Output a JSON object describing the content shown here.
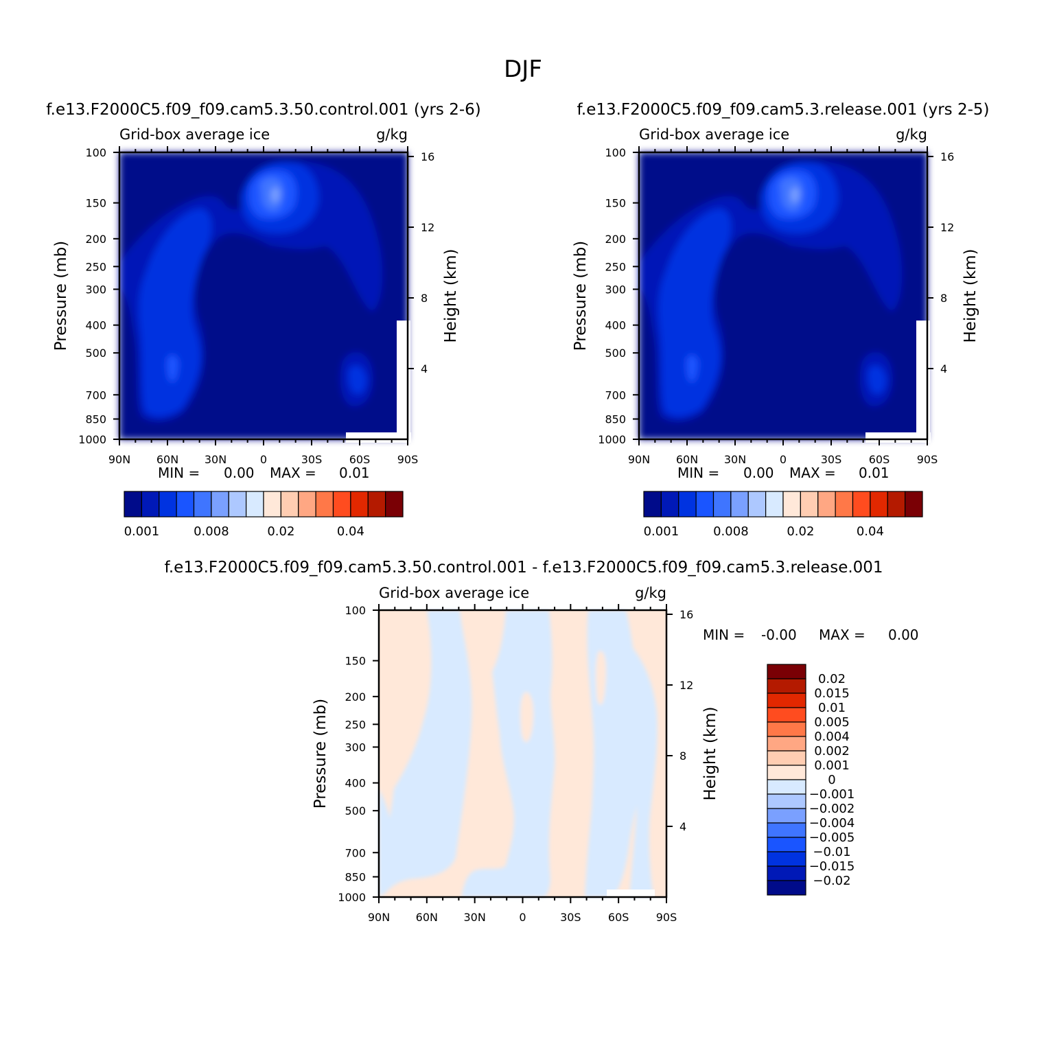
{
  "figure": {
    "title": "DJF"
  },
  "panels": [
    {
      "title": "f.e13.F2000C5.f09_f09.cam5.3.50.control.001 (yrs 2-6)",
      "left_label": "Grid-box average ice",
      "right_label": "g/kg",
      "stats": {
        "min_label": "MIN =",
        "min_value": "0.00",
        "max_label": "MAX =",
        "max_value": "0.01"
      }
    },
    {
      "title": "f.e13.F2000C5.f09_f09.cam5.3.release.001 (yrs 2-5)",
      "left_label": "Grid-box average ice",
      "right_label": "g/kg",
      "stats": {
        "min_label": "MIN =",
        "min_value": "0.00",
        "max_label": "MAX =",
        "max_value": "0.01"
      }
    },
    {
      "title": "f.e13.F2000C5.f09_f09.cam5.3.50.control.001 - f.e13.F2000C5.f09_f09.cam5.3.release.001",
      "left_label": "Grid-box average ice",
      "right_label": "g/kg",
      "stats": {
        "min_label": "MIN =",
        "min_value": "-0.00",
        "max_label": "MAX =",
        "max_value": "0.00"
      }
    }
  ],
  "axes": {
    "x_ticks": [
      "90N",
      "60N",
      "30N",
      "0",
      "30S",
      "60S",
      "90S"
    ],
    "y_label": "Pressure (mb)",
    "y_ticks": [
      100,
      150,
      200,
      250,
      300,
      400,
      500,
      700,
      850,
      1000
    ],
    "y2_label": "Height (km)",
    "y2_ticks": [
      16,
      12,
      8,
      4
    ]
  },
  "colorbar_main": {
    "colors": [
      "#000b8a",
      "#0019b7",
      "#0033e0",
      "#1a55ff",
      "#3f75ff",
      "#7aa0ff",
      "#adc8ff",
      "#d8eaff",
      "#ffe8d9",
      "#ffcdb2",
      "#ffa783",
      "#ff7848",
      "#ff4c1f",
      "#e22800",
      "#b41a00",
      "#7a0005"
    ],
    "labels": [
      "0.001",
      "0.008",
      "0.02",
      "0.04"
    ]
  },
  "colorbar_diff": {
    "colors": [
      "#000b8a",
      "#0019b7",
      "#0033e0",
      "#1a55ff",
      "#3f75ff",
      "#7aa0ff",
      "#adc8ff",
      "#d8eaff",
      "#ffe8d9",
      "#ffcdb2",
      "#ffa783",
      "#ff7848",
      "#ff4c1f",
      "#e22800",
      "#b41a00",
      "#7a0005"
    ],
    "labels": [
      "0.02",
      "0.015",
      "0.01",
      "0.005",
      "0.004",
      "0.002",
      "0.001",
      "0",
      "-0.001",
      "-0.002",
      "-0.004",
      "-0.005",
      "-0.01",
      "-0.015",
      "-0.02"
    ]
  },
  "chart_data": [
    {
      "type": "heatmap",
      "title": "f.e13.F2000C5.f09_f09.cam5.3.50.control.001 (yrs 2-6)",
      "variable": "Grid-box average ice",
      "units": "g/kg",
      "xlabel": "",
      "ylabel": "Pressure (mb)",
      "y2label": "Height (km)",
      "x_ticks": [
        "90N",
        "60N",
        "30N",
        "0",
        "30S",
        "60S",
        "90S"
      ],
      "ylim": [
        1000,
        100
      ],
      "y_scale": "log",
      "min": 0.0,
      "max": 0.01,
      "levels": [
        0.001,
        0.002,
        0.004,
        0.006,
        0.008,
        0.01,
        0.015,
        0.02
      ],
      "features": [
        {
          "region": "tropical upper troposphere",
          "lat": 6,
          "pressure_mb": 240,
          "approx_value": 0.006
        },
        {
          "region": "NH mid-latitude column",
          "lat": 55,
          "pressure_mb": 500,
          "approx_value": 0.002
        },
        {
          "region": "SH high-latitude lower troposphere",
          "lat": -67,
          "pressure_mb": 790,
          "approx_value": 0.003
        }
      ]
    },
    {
      "type": "heatmap",
      "title": "f.e13.F2000C5.f09_f09.cam5.3.release.001 (yrs 2-5)",
      "variable": "Grid-box average ice",
      "units": "g/kg",
      "xlabel": "",
      "ylabel": "Pressure (mb)",
      "y2label": "Height (km)",
      "x_ticks": [
        "90N",
        "60N",
        "30N",
        "0",
        "30S",
        "60S",
        "90S"
      ],
      "ylim": [
        1000,
        100
      ],
      "y_scale": "log",
      "min": 0.0,
      "max": 0.01,
      "levels": [
        0.001,
        0.002,
        0.004,
        0.006,
        0.008,
        0.01,
        0.015,
        0.02
      ],
      "features": [
        {
          "region": "tropical upper troposphere",
          "lat": 6,
          "pressure_mb": 240,
          "approx_value": 0.006
        },
        {
          "region": "NH mid-latitude column",
          "lat": 55,
          "pressure_mb": 500,
          "approx_value": 0.002
        },
        {
          "region": "SH high-latitude lower troposphere",
          "lat": -67,
          "pressure_mb": 790,
          "approx_value": 0.003
        }
      ]
    },
    {
      "type": "heatmap",
      "title": "f.e13.F2000C5.f09_f09.cam5.3.50.control.001 - f.e13.F2000C5.f09_f09.cam5.3.release.001",
      "variable": "Grid-box average ice",
      "units": "g/kg",
      "xlabel": "",
      "ylabel": "Pressure (mb)",
      "y2label": "Height (km)",
      "x_ticks": [
        "90N",
        "60N",
        "30N",
        "0",
        "30S",
        "60S",
        "90S"
      ],
      "ylim": [
        1000,
        100
      ],
      "y_scale": "log",
      "min": -0.0,
      "max": 0.0,
      "levels": [
        -0.02,
        -0.015,
        -0.01,
        -0.005,
        -0.004,
        -0.002,
        -0.001,
        0,
        0.001,
        0.002,
        0.004,
        0.005,
        0.01,
        0.015,
        0.02
      ],
      "bands": [
        {
          "lat_from": 90,
          "lat_to": 60,
          "sign": "mixed"
        },
        {
          "lat_from": 60,
          "lat_to": 30,
          "sign": "positive"
        },
        {
          "lat_from": 30,
          "lat_to": 0,
          "sign": "negative"
        },
        {
          "lat_from": 0,
          "lat_to": -40,
          "sign": "positive"
        },
        {
          "lat_from": -40,
          "lat_to": -90,
          "sign": "negative"
        }
      ]
    }
  ]
}
